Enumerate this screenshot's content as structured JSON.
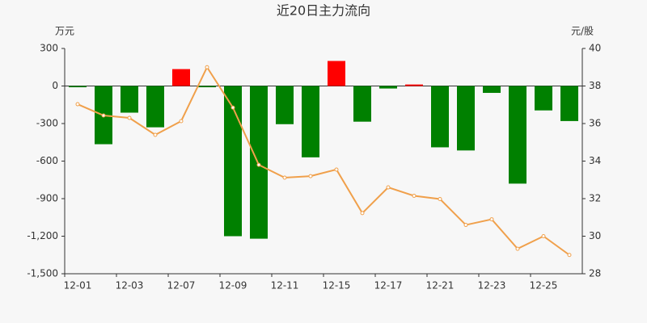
{
  "chart_data": {
    "type": "bar_line",
    "title": "近20日主力流向",
    "y_label": "万元",
    "y2_label": "元/股",
    "categories": [
      "12-01",
      null,
      "12-03",
      null,
      "12-07",
      null,
      "12-09",
      null,
      "12-11",
      null,
      "12-15",
      null,
      "12-17",
      null,
      "12-21",
      null,
      "12-23",
      null,
      "12-25",
      null
    ],
    "series": [
      {
        "type": "bar",
        "positive_color": "#ff0000",
        "negative_color": "#008000",
        "values": [
          -10,
          -465,
          -213,
          -330,
          135,
          -10,
          -1200,
          -1220,
          -305,
          -570,
          200,
          -285,
          -20,
          12,
          -490,
          -515,
          -55,
          -780,
          -195,
          -280
        ]
      },
      {
        "type": "line",
        "axis": "y2",
        "color": "#f0a04b",
        "values": [
          37.03,
          36.43,
          36.3,
          35.4,
          36.13,
          39.0,
          36.85,
          33.8,
          33.12,
          33.2,
          33.55,
          31.23,
          32.6,
          32.15,
          31.98,
          30.6,
          30.9,
          29.33,
          30.0,
          29.0
        ]
      }
    ],
    "ylim": [
      -1500,
      300
    ],
    "yticks": [
      {
        "value": -1500,
        "label": "-1,500"
      },
      {
        "value": -1200,
        "label": "-1,200"
      },
      -900,
      -600,
      -300,
      0,
      300
    ],
    "y2lim": [
      28,
      40
    ],
    "y2ticks": [
      28,
      30,
      32,
      34,
      36,
      38,
      40
    ]
  }
}
